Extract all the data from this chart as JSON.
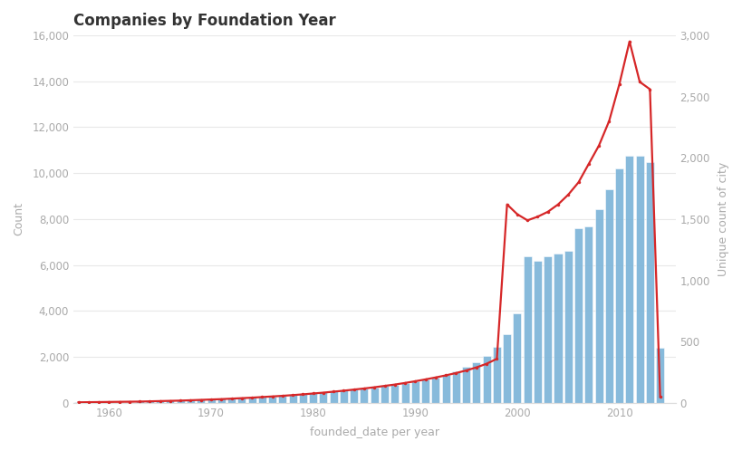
{
  "title": "Companies by Foundation Year",
  "xlabel": "founded_date per year",
  "ylabel_left": "Count",
  "ylabel_right": "Unique count of city",
  "bar_color": "#7ab3d8",
  "line_color": "#d62728",
  "line_marker": "o",
  "line_marker_size": 2.5,
  "line_width": 1.6,
  "background_color": "#ffffff",
  "panel_bg": "#f5f5f5",
  "ylim_left": [
    0,
    16000
  ],
  "ylim_right": [
    0,
    3000
  ],
  "xlim_left": 1956.5,
  "xlim_right": 2015.5,
  "years": [
    1957,
    1958,
    1959,
    1960,
    1961,
    1962,
    1963,
    1964,
    1965,
    1966,
    1967,
    1968,
    1969,
    1970,
    1971,
    1972,
    1973,
    1974,
    1975,
    1976,
    1977,
    1978,
    1979,
    1980,
    1981,
    1982,
    1983,
    1984,
    1985,
    1986,
    1987,
    1988,
    1989,
    1990,
    1991,
    1992,
    1993,
    1994,
    1995,
    1996,
    1997,
    1998,
    1999,
    2000,
    2001,
    2002,
    2003,
    2004,
    2005,
    2006,
    2007,
    2008,
    2009,
    2010,
    2011,
    2012,
    2013,
    2014
  ],
  "counts": [
    20,
    25,
    30,
    40,
    45,
    55,
    65,
    75,
    90,
    100,
    115,
    130,
    150,
    170,
    185,
    200,
    220,
    245,
    265,
    290,
    315,
    345,
    375,
    415,
    455,
    495,
    535,
    580,
    630,
    680,
    740,
    800,
    870,
    950,
    1030,
    1120,
    1230,
    1380,
    1570,
    1780,
    2050,
    2450,
    3000,
    3900,
    6400,
    6200,
    6400,
    6500,
    6600,
    7600,
    7700,
    8450,
    9300,
    10200,
    10750,
    10750,
    10500,
    2400
  ],
  "line_years": [
    1957,
    1958,
    1959,
    1960,
    1961,
    1962,
    1963,
    1964,
    1965,
    1966,
    1967,
    1968,
    1969,
    1970,
    1971,
    1972,
    1973,
    1974,
    1975,
    1976,
    1977,
    1978,
    1979,
    1980,
    1981,
    1982,
    1983,
    1984,
    1985,
    1986,
    1987,
    1988,
    1989,
    1990,
    1991,
    1992,
    1993,
    1994,
    1995,
    1996,
    1997,
    1998,
    1999,
    2000,
    2001,
    2002,
    2003,
    2004,
    2005,
    2006,
    2007,
    2008,
    2009,
    2010,
    2011,
    2012,
    2013,
    2014
  ],
  "line_values": [
    5,
    6,
    7,
    8,
    9,
    10,
    11,
    13,
    15,
    17,
    19,
    22,
    25,
    28,
    31,
    35,
    39,
    43,
    48,
    53,
    58,
    64,
    70,
    77,
    84,
    92,
    100,
    109,
    118,
    128,
    139,
    150,
    163,
    177,
    192,
    208,
    225,
    244,
    265,
    290,
    320,
    360,
    1620,
    1540,
    1490,
    1520,
    1560,
    1620,
    1700,
    1800,
    1950,
    2100,
    2300,
    2600,
    2950,
    2620,
    2560,
    50
  ],
  "xticks": [
    1960,
    1970,
    1980,
    1990,
    2000,
    2010
  ],
  "yticks_left": [
    0,
    2000,
    4000,
    6000,
    8000,
    10000,
    12000,
    14000,
    16000
  ],
  "yticks_right": [
    0,
    500,
    1000,
    1500,
    2000,
    2500,
    3000
  ],
  "title_fontsize": 12,
  "axis_label_fontsize": 9,
  "tick_fontsize": 8.5,
  "tick_color": "#aaaaaa",
  "grid_color": "#e8e8e8",
  "spine_color": "#dddddd"
}
